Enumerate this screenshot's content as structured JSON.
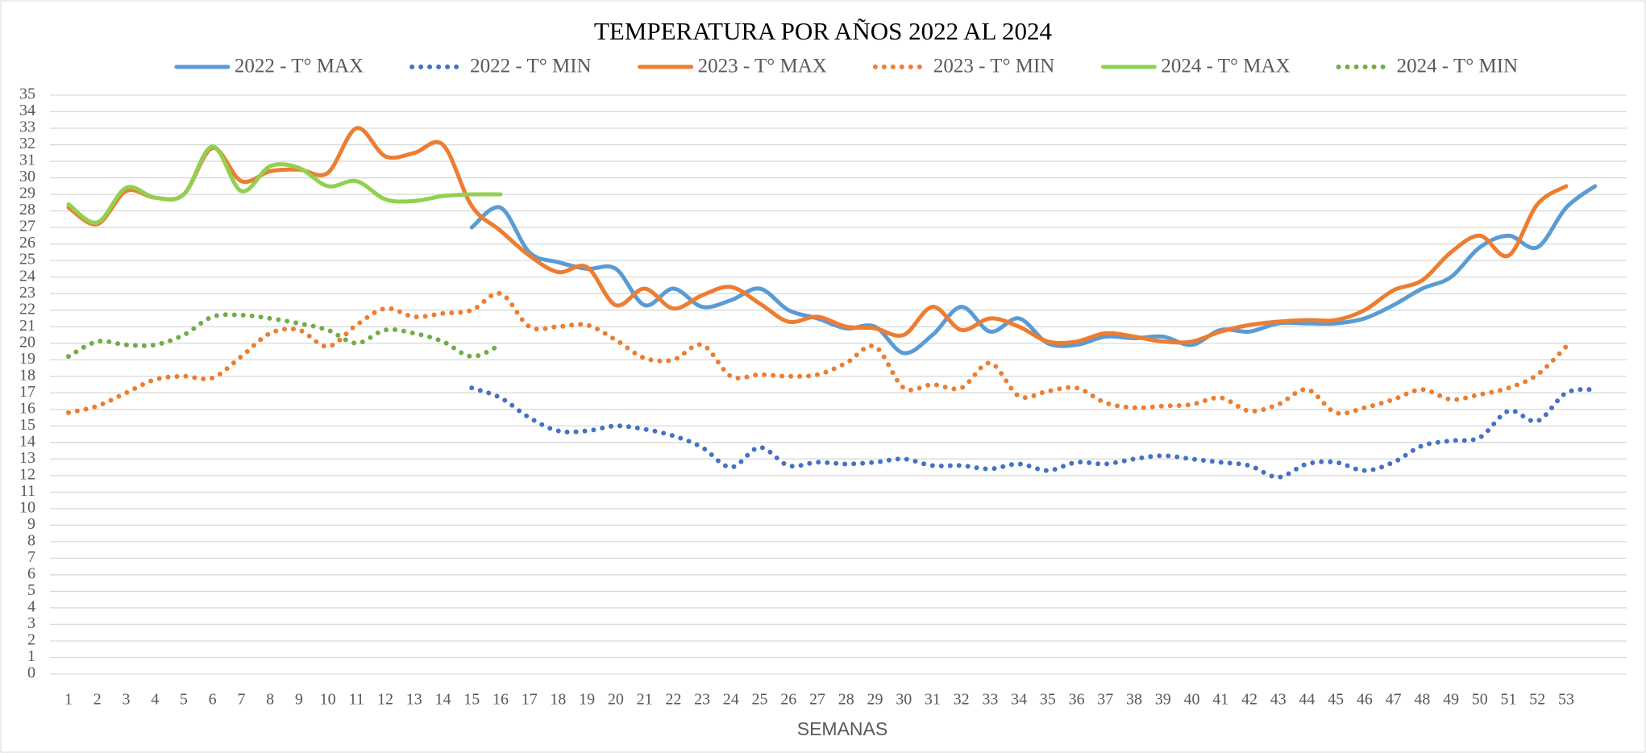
{
  "chart_data": {
    "type": "line",
    "title": "TEMPERATURA POR AÑOS 2022 AL 2024",
    "x_label": "SEMANAS",
    "categories": [
      1,
      2,
      3,
      4,
      5,
      6,
      7,
      8,
      9,
      10,
      11,
      12,
      13,
      14,
      15,
      16,
      17,
      18,
      19,
      20,
      21,
      22,
      23,
      24,
      25,
      26,
      27,
      28,
      29,
      30,
      31,
      32,
      33,
      34,
      35,
      36,
      37,
      38,
      39,
      40,
      41,
      42,
      43,
      44,
      45,
      46,
      47,
      48,
      49,
      50,
      51,
      52,
      53,
      null
    ],
    "ylim": [
      0,
      35
    ],
    "yticks": [
      0,
      1,
      2,
      3,
      4,
      5,
      6,
      7,
      8,
      9,
      10,
      11,
      12,
      13,
      14,
      15,
      16,
      17,
      18,
      19,
      20,
      21,
      22,
      23,
      24,
      25,
      26,
      27,
      28,
      29,
      30,
      31,
      32,
      33,
      34,
      35
    ],
    "grid": true,
    "legend": "top",
    "series": [
      {
        "name": "2022 - T° MAX",
        "color": "#5b9bd5",
        "style": "solid",
        "values": [
          null,
          null,
          null,
          null,
          null,
          null,
          null,
          null,
          null,
          null,
          null,
          null,
          null,
          null,
          27,
          28.2,
          25.5,
          24.9,
          24.5,
          24.5,
          22.3,
          23.3,
          22.2,
          22.6,
          23.3,
          22,
          21.5,
          20.9,
          21,
          19.4,
          20.5,
          22.2,
          20.7,
          21.5,
          20,
          19.9,
          20.4,
          20.3,
          20.4,
          19.9,
          20.8,
          20.7,
          21.2,
          21.2,
          21.2,
          21.5,
          22.3,
          23.3,
          24,
          25.8,
          26.5,
          25.8,
          28.2,
          29.5
        ]
      },
      {
        "name": "2022 - T° MIN",
        "color": "#4472c4",
        "style": "dotted",
        "values": [
          null,
          null,
          null,
          null,
          null,
          null,
          null,
          null,
          null,
          null,
          null,
          null,
          null,
          null,
          17.3,
          16.7,
          15.5,
          14.7,
          14.7,
          15,
          14.8,
          14.4,
          13.7,
          12.5,
          13.7,
          12.6,
          12.8,
          12.7,
          12.8,
          13,
          12.6,
          12.6,
          12.4,
          12.7,
          12.3,
          12.8,
          12.7,
          13,
          13.2,
          13,
          12.8,
          12.6,
          11.9,
          12.7,
          12.8,
          12.3,
          12.8,
          13.8,
          14.1,
          14.3,
          15.9,
          15.3,
          17,
          17.2
        ]
      },
      {
        "name": "2023 - T° MAX",
        "color": "#ed7d31",
        "style": "solid",
        "values": [
          28.2,
          27.2,
          29.2,
          28.8,
          29,
          31.8,
          29.8,
          30.4,
          30.5,
          30.3,
          33,
          31.3,
          31.5,
          32,
          28.3,
          26.8,
          25.3,
          24.3,
          24.6,
          22.3,
          23.3,
          22.1,
          22.9,
          23.4,
          22.4,
          21.3,
          21.6,
          21,
          20.9,
          20.5,
          22.2,
          20.8,
          21.5,
          21,
          20.1,
          20.1,
          20.6,
          20.4,
          20.1,
          20.1,
          20.7,
          21.1,
          21.3,
          21.4,
          21.4,
          22,
          23.2,
          23.8,
          25.5,
          26.5,
          25.3,
          28.4,
          29.5,
          null
        ]
      },
      {
        "name": "2023 - T° MIN",
        "color": "#ed7d31",
        "style": "dotted",
        "values": [
          15.8,
          16.2,
          17,
          17.8,
          18,
          17.9,
          19.2,
          20.6,
          20.8,
          19.8,
          21.1,
          22.1,
          21.6,
          21.8,
          22,
          23,
          21,
          21,
          21.1,
          20.2,
          19.1,
          19,
          19.9,
          18,
          18.1,
          18,
          18.1,
          18.8,
          19.8,
          17.3,
          17.5,
          17.3,
          18.8,
          16.8,
          17.1,
          17.3,
          16.4,
          16.1,
          16.2,
          16.3,
          16.7,
          15.9,
          16.3,
          17.2,
          15.8,
          16.1,
          16.6,
          17.2,
          16.6,
          16.9,
          17.3,
          18.1,
          19.8,
          null
        ]
      },
      {
        "name": "2024 - T° MAX",
        "color": "#92d050",
        "style": "solid",
        "values": [
          28.4,
          27.3,
          29.4,
          28.8,
          29,
          31.9,
          29.2,
          30.7,
          30.6,
          29.5,
          29.8,
          28.7,
          28.6,
          28.9,
          29,
          29,
          null,
          null,
          null,
          null,
          null,
          null,
          null,
          null,
          null,
          null,
          null,
          null,
          null,
          null,
          null,
          null,
          null,
          null,
          null,
          null,
          null,
          null,
          null,
          null,
          null,
          null,
          null,
          null,
          null,
          null,
          null,
          null,
          null,
          null,
          null,
          null,
          null,
          null
        ]
      },
      {
        "name": "2024 - T° MIN",
        "color": "#70ad47",
        "style": "dotted",
        "values": [
          19.2,
          20.1,
          19.9,
          19.9,
          20.5,
          21.6,
          21.7,
          21.5,
          21.2,
          20.8,
          20,
          20.8,
          20.6,
          20.1,
          19.2,
          19.9,
          null,
          null,
          null,
          null,
          null,
          null,
          null,
          null,
          null,
          null,
          null,
          null,
          null,
          null,
          null,
          null,
          null,
          null,
          null,
          null,
          null,
          null,
          null,
          null,
          null,
          null,
          null,
          null,
          null,
          null,
          null,
          null,
          null,
          null,
          null,
          null,
          null,
          null
        ]
      }
    ]
  }
}
